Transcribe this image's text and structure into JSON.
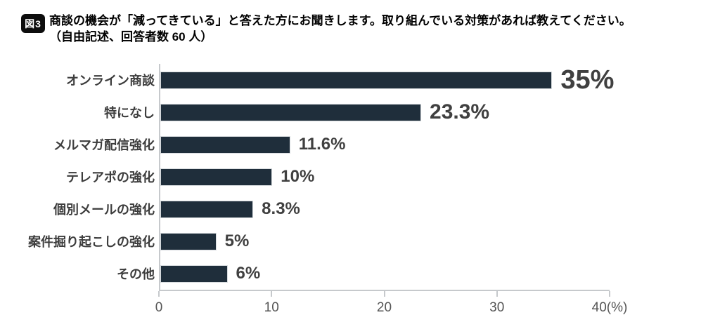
{
  "figure": {
    "badge": "図3",
    "title_line1": "商談の機会が「減ってきている」と答えた方にお聞きします。取り組んでいる対策があれば教えてください。",
    "title_line2": "（自由記述、回答者数 60 人）"
  },
  "chart_data": {
    "type": "bar",
    "orientation": "horizontal",
    "title": "商談の機会が「減ってきている」と答えた方にお聞きします。取り組んでいる対策があれば教えてください。（自由記述、回答者数 60 人）",
    "categories": [
      "オンライン商談",
      "特になし",
      "メルマガ配信強化",
      "テレアポの強化",
      "個別メールの強化",
      "案件掘り起こしの強化",
      "その他"
    ],
    "values": [
      35,
      23.3,
      11.6,
      10,
      8.3,
      5,
      6
    ],
    "value_labels": [
      "35%",
      "23.3%",
      "11.6%",
      "10%",
      "8.3%",
      "5%",
      "6%"
    ],
    "xlabel": "",
    "ylabel": "",
    "xlim": [
      0,
      40
    ],
    "x_ticks": [
      0,
      10,
      20,
      30,
      40
    ],
    "x_tick_labels": [
      "0",
      "10",
      "20",
      "30",
      "40(%)"
    ],
    "legend": false,
    "grid": false,
    "bar_color": "#1f2e3b",
    "axis_color": "#c6c9cc",
    "label_color": "#3d3d3d",
    "value_color": "#404040"
  }
}
